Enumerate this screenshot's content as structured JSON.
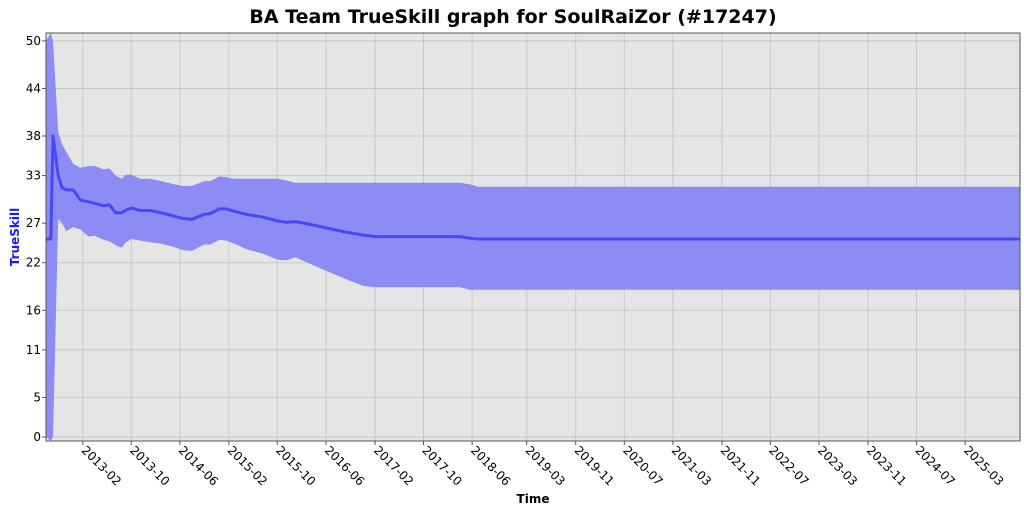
{
  "chart_data": {
    "type": "area",
    "title": "BA Team TrueSkill graph for SoulRaiZor (#17247)",
    "xlabel": "Time",
    "ylabel": "TrueSkill",
    "x_tick_labels": [
      "2013-02",
      "2013-10",
      "2014-06",
      "2015-02",
      "2015-10",
      "2016-06",
      "2017-02",
      "2017-10",
      "2018-06",
      "2019-03",
      "2019-11",
      "2020-07",
      "2021-03",
      "2021-11",
      "2022-07",
      "2023-03",
      "2023-11",
      "2024-07",
      "2025-03"
    ],
    "y_ticks": [
      0,
      5,
      11,
      16,
      22,
      27,
      33,
      38,
      44,
      50
    ],
    "ylim": [
      -0.5,
      51
    ],
    "xlim": [
      "2012-08-01",
      "2025-11-30"
    ],
    "grid": true,
    "colors": {
      "line": "#4848f8",
      "band": "#8c8cf4",
      "plot_bg": "#e5e5e5",
      "grid": "#c8c8c8"
    },
    "series": [
      {
        "x": [
          "2012-08-01",
          "2012-08-25",
          "2012-09-05",
          "2012-10-01",
          "2012-10-20",
          "2012-11-10",
          "2012-12-15",
          "2013-01-20",
          "2013-03-01",
          "2013-04-01",
          "2013-05-15",
          "2013-06-15",
          "2013-07-15",
          "2013-08-15",
          "2013-09-01",
          "2013-10-01",
          "2013-11-15",
          "2014-01-01",
          "2014-03-01",
          "2014-05-01",
          "2014-06-15",
          "2014-08-01",
          "2014-10-01",
          "2014-11-01",
          "2014-12-15",
          "2015-01-20",
          "2015-03-01",
          "2015-05-01",
          "2015-07-15",
          "2015-10-01",
          "2015-11-15",
          "2015-12-30",
          "2016-03-01",
          "2016-06-01",
          "2016-09-01",
          "2016-12-01",
          "2017-02-01",
          "2017-05-01",
          "2017-10-01",
          "2018-04-01",
          "2018-05-20",
          "2018-07-01",
          "2021-06-01",
          "2025-11-30"
        ],
        "mu": [
          25,
          25,
          38,
          33,
          31.5,
          31.2,
          31.2,
          29.9,
          29.7,
          29.5,
          29.2,
          29.3,
          28.3,
          28.3,
          28.6,
          28.9,
          28.6,
          28.6,
          28.3,
          27.9,
          27.6,
          27.5,
          28.1,
          28.2,
          28.8,
          28.8,
          28.5,
          28.1,
          27.8,
          27.3,
          27.1,
          27.2,
          26.9,
          26.4,
          25.9,
          25.5,
          25.3,
          25.3,
          25.3,
          25.3,
          25.1,
          25.0,
          25.0,
          25.0
        ],
        "upper": [
          50,
          51,
          50,
          38.5,
          37,
          36,
          34.5,
          34,
          34.2,
          34.2,
          33.8,
          33.9,
          33,
          32.6,
          33.1,
          33.1,
          32.6,
          32.6,
          32.3,
          31.9,
          31.7,
          31.7,
          32.3,
          32.3,
          32.9,
          32.8,
          32.6,
          32.6,
          32.6,
          32.6,
          32.4,
          32.1,
          32.1,
          32.1,
          32.1,
          32.1,
          32.1,
          32.1,
          32.1,
          32.1,
          31.9,
          31.6,
          31.6,
          31.6
        ],
        "lower": [
          0,
          -0.5,
          0,
          27.5,
          27,
          26,
          26.5,
          26.2,
          25.3,
          25.4,
          24.9,
          24.7,
          24.2,
          23.9,
          24.5,
          25,
          24.8,
          24.6,
          24.4,
          24.0,
          23.6,
          23.5,
          24.3,
          24.3,
          24.9,
          24.8,
          24.4,
          23.7,
          23.2,
          22.4,
          22.3,
          22.7,
          22.0,
          21.0,
          20.0,
          19.1,
          18.9,
          18.9,
          18.9,
          18.9,
          18.6,
          18.6,
          18.6,
          18.6
        ]
      }
    ]
  }
}
